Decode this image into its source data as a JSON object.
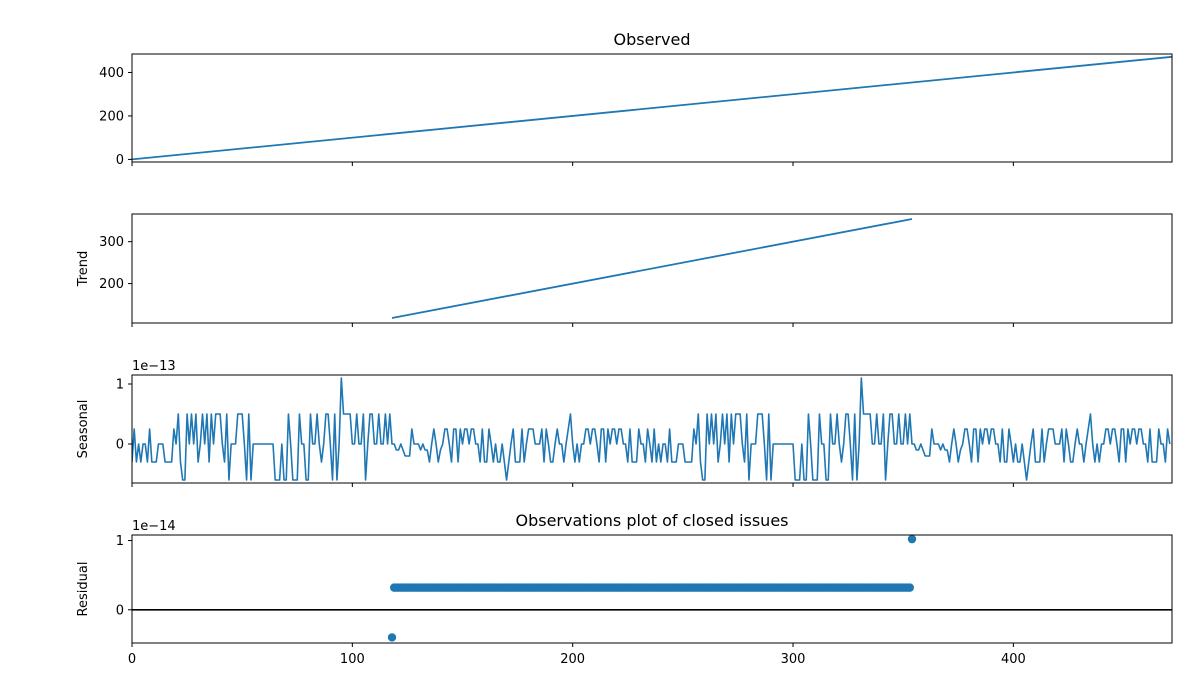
{
  "figure_title": "Observations plot of closed issues",
  "colors": {
    "series": "#1f77b4",
    "axis": "#000000",
    "zero_line": "#000000"
  },
  "chart_data": [
    {
      "id": "observed",
      "type": "line",
      "title": "Observed",
      "ylabel": "",
      "offset_label": "",
      "xlim": [
        0,
        472
      ],
      "ylim": [
        -12,
        485
      ],
      "xticks": [
        0,
        100,
        200,
        300,
        400
      ],
      "yticks": [
        0,
        200,
        400
      ],
      "ytick_labels": [
        "0",
        "200",
        "400"
      ],
      "show_xtick_labels": false,
      "series": [
        {
          "x": [
            0,
            472
          ],
          "y": [
            0,
            472
          ]
        }
      ]
    },
    {
      "id": "trend",
      "type": "line",
      "title": "",
      "ylabel": "Trend",
      "offset_label": "",
      "xlim": [
        0,
        472
      ],
      "ylim": [
        106,
        366
      ],
      "xticks": [
        0,
        100,
        200,
        300,
        400
      ],
      "yticks": [
        200,
        300
      ],
      "ytick_labels": [
        "200",
        "300"
      ],
      "show_xtick_labels": false,
      "series": [
        {
          "x": [
            118,
            354
          ],
          "y": [
            118,
            354
          ]
        }
      ]
    },
    {
      "id": "seasonal",
      "type": "line",
      "title": "",
      "ylabel": "Seasonal",
      "offset_label": "1e−13",
      "xlim": [
        0,
        472
      ],
      "ylim": [
        -0.65,
        1.15
      ],
      "xticks": [
        0,
        100,
        200,
        300,
        400
      ],
      "yticks": [
        0,
        1
      ],
      "ytick_labels": [
        "0",
        "1"
      ],
      "show_xtick_labels": false,
      "period": 236,
      "pattern": [
        -0.3,
        0.25,
        -0.3,
        0,
        -0.3,
        0,
        0,
        -0.3,
        0.25,
        -0.3,
        -0.3,
        -0.3,
        0,
        0,
        0,
        -0.3,
        -0.3,
        -0.3,
        -0.3,
        0.25,
        0,
        0.5,
        -0.3,
        -0.6,
        -0.6,
        0.5,
        0,
        0.5,
        0,
        0.5,
        -0.3,
        0,
        0.5,
        0,
        0.5,
        -0.3,
        0.5,
        0,
        0.5,
        0.5,
        0.5,
        0,
        -0.3,
        0.5,
        -0.6,
        0,
        0,
        0,
        0.5,
        0.5,
        0.5,
        0,
        -0.6,
        0.5,
        -0.6,
        0,
        0,
        0,
        0,
        0,
        0,
        0,
        0,
        0,
        0,
        -0.6,
        -0.6,
        -0.6,
        0,
        -0.6,
        -0.6,
        0.5,
        0,
        -0.6,
        -0.6,
        -0.6,
        0.5,
        0,
        0,
        -0.6,
        -0.6,
        0.5,
        0,
        0,
        0.5,
        0,
        -0.3,
        0,
        0.5,
        0.5,
        0,
        -0.6,
        0.5,
        -0.6,
        0,
        1.1,
        0.5,
        0.5,
        0.5,
        0.5,
        0,
        0,
        0.5,
        0,
        0,
        0.5,
        -0.6,
        0,
        0.5,
        0.5,
        0,
        0,
        0.5,
        0,
        0,
        0.5,
        0,
        0.5,
        0,
        0,
        -0.1,
        -0.1,
        0,
        -0.1,
        -0.2,
        -0.2,
        -0.2,
        0.25,
        0,
        0,
        0,
        -0.1,
        0,
        -0.1,
        -0.1,
        -0.3,
        0,
        0.25,
        0,
        -0.3,
        -0.1,
        0,
        0.25,
        0.25,
        0,
        -0.3,
        0.25,
        0.25,
        -0.3,
        0.25,
        0,
        0.25,
        0.25,
        0,
        0.25,
        0.25,
        0,
        0,
        -0.3,
        0.25,
        -0.3,
        -0.3,
        0.25,
        0,
        -0.3,
        0,
        -0.3,
        -0.3,
        0,
        -0.3,
        -0.6,
        -0.3,
        0,
        0.25,
        -0.3,
        -0.3,
        -0.3,
        0.25,
        -0.3,
        0,
        0.25,
        0.25,
        0.25,
        0,
        0,
        0,
        0.25,
        -0.3,
        0.25,
        0,
        -0.3,
        -0.3,
        0,
        0.25,
        0,
        0,
        -0.3,
        0,
        0.25,
        0.5,
        0,
        -0.3,
        0,
        -0.3,
        0,
        0,
        0.25,
        0.25,
        0,
        0.25,
        0.25,
        0,
        -0.3,
        0.25,
        0.25,
        -0.3,
        0.25,
        0,
        0.25,
        0.25,
        0,
        0.25,
        0.25,
        0,
        0,
        -0.3,
        0.25,
        -0.3,
        -0.3,
        -0.3,
        0.25,
        0,
        0,
        -0.3,
        0.25,
        0,
        0,
        0,
        -0.3,
        -0.3,
        -0.3,
        0,
        0,
        0
      ]
    },
    {
      "id": "residual",
      "type": "scatter",
      "title": "Observations plot of closed issues",
      "ylabel": "Residual",
      "offset_label": "1e−14",
      "xlim": [
        0,
        472
      ],
      "ylim": [
        -0.48,
        1.08
      ],
      "xticks": [
        0,
        100,
        200,
        300,
        400
      ],
      "yticks": [
        0,
        1
      ],
      "ytick_labels": [
        "0",
        "1"
      ],
      "xtick_labels": [
        "0",
        "100",
        "200",
        "300",
        "400"
      ],
      "show_xtick_labels": true,
      "zero_line": 0,
      "special_points": [
        {
          "x": 118,
          "y": -0.4
        },
        {
          "x": 354,
          "y": 1.02
        }
      ],
      "constant_run": {
        "x_start": 119,
        "x_end": 353,
        "y": 0.32
      }
    }
  ]
}
